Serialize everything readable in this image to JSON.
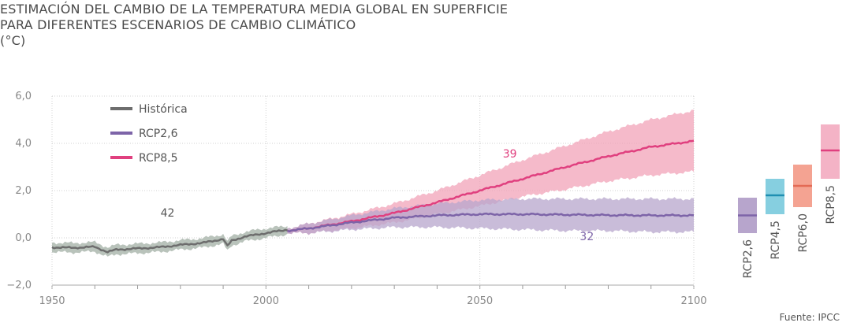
{
  "title": {
    "line1": "ESTIMACIÓN DEL CAMBIO DE LA TEMPERATURA MEDIA GLOBAL EN SUPERFICIE",
    "line2": "PARA DIFERENTES ESCENARIOS DE CAMBIO CLIMÁTICO",
    "unit": "(°C)"
  },
  "source": "Fuente: IPCC",
  "chart_data": {
    "type": "line",
    "xlim": [
      1950,
      2100
    ],
    "ylim": [
      -2,
      6
    ],
    "x_ticks": [
      "1950",
      "2000",
      "2050",
      "2100"
    ],
    "y_ticks": [
      "6,0",
      "4,0",
      "2,0",
      "0,0",
      "−2,0"
    ],
    "series": [
      {
        "name": "Histórica",
        "color": "#6d6d6d",
        "band_color": "#b9c3bb",
        "x": [
          1950,
          1955,
          1960,
          1963,
          1965,
          1970,
          1975,
          1980,
          1985,
          1990,
          1991,
          1992,
          1995,
          2000,
          2005
        ],
        "y": [
          -0.4,
          -0.42,
          -0.38,
          -0.6,
          -0.5,
          -0.45,
          -0.4,
          -0.3,
          -0.22,
          -0.05,
          -0.35,
          -0.12,
          0.05,
          0.2,
          0.35
        ],
        "band_upper": [
          -0.2,
          -0.22,
          -0.18,
          -0.4,
          -0.3,
          -0.25,
          -0.2,
          -0.1,
          -0.02,
          0.15,
          -0.15,
          0.08,
          0.25,
          0.4,
          0.5
        ],
        "band_lower": [
          -0.6,
          -0.62,
          -0.58,
          -0.8,
          -0.7,
          -0.65,
          -0.6,
          -0.5,
          -0.42,
          -0.25,
          -0.55,
          -0.32,
          -0.15,
          0.0,
          0.15
        ]
      },
      {
        "name": "RCP2,6",
        "color": "#7d64a8",
        "band_color": "#b7a5cc",
        "x": [
          2005,
          2010,
          2020,
          2030,
          2040,
          2050,
          2060,
          2070,
          2080,
          2090,
          2100
        ],
        "y": [
          0.3,
          0.4,
          0.65,
          0.85,
          0.95,
          1.0,
          1.0,
          0.98,
          0.96,
          0.95,
          0.95
        ],
        "band_upper": [
          0.4,
          0.6,
          0.95,
          1.25,
          1.45,
          1.6,
          1.65,
          1.65,
          1.65,
          1.65,
          1.65
        ],
        "band_lower": [
          0.2,
          0.2,
          0.35,
          0.45,
          0.45,
          0.4,
          0.35,
          0.3,
          0.3,
          0.25,
          0.25
        ]
      },
      {
        "name": "RCP8,5",
        "color": "#e0407f",
        "band_color": "#f1a3b8",
        "x": [
          2005,
          2010,
          2020,
          2030,
          2040,
          2050,
          2060,
          2070,
          2080,
          2090,
          2100
        ],
        "y": [
          0.3,
          0.4,
          0.7,
          1.05,
          1.5,
          2.0,
          2.5,
          3.0,
          3.45,
          3.85,
          4.1
        ],
        "band_upper": [
          0.4,
          0.6,
          1.0,
          1.45,
          2.0,
          2.65,
          3.3,
          3.9,
          4.5,
          5.0,
          5.4
        ],
        "band_lower": [
          0.2,
          0.2,
          0.4,
          0.65,
          1.0,
          1.35,
          1.75,
          2.05,
          2.4,
          2.65,
          2.8
        ]
      }
    ],
    "annotations": [
      {
        "text": "42",
        "x": 1977,
        "y": 0.9,
        "color": "#555555"
      },
      {
        "text": "39",
        "x": 2057,
        "y": 3.4,
        "color": "#e0407f"
      },
      {
        "text": "32",
        "x": 2075,
        "y": -0.1,
        "color": "#7d64a8"
      }
    ],
    "range_bars": [
      {
        "label": "RCP2,6",
        "low": 0.2,
        "high": 1.7,
        "mean": 0.95,
        "color": "#b7a5cc",
        "line_color": "#7d64a8"
      },
      {
        "label": "RCP4,5",
        "low": 1.0,
        "high": 2.5,
        "mean": 1.8,
        "color": "#86cfe0",
        "line_color": "#1f8fb2"
      },
      {
        "label": "RCP6,0",
        "low": 1.3,
        "high": 3.1,
        "mean": 2.2,
        "color": "#f4a392",
        "line_color": "#e36a55"
      },
      {
        "label": "RCP8,5",
        "low": 2.5,
        "high": 4.8,
        "mean": 3.7,
        "color": "#f4b3c6",
        "line_color": "#e0407f"
      }
    ]
  }
}
